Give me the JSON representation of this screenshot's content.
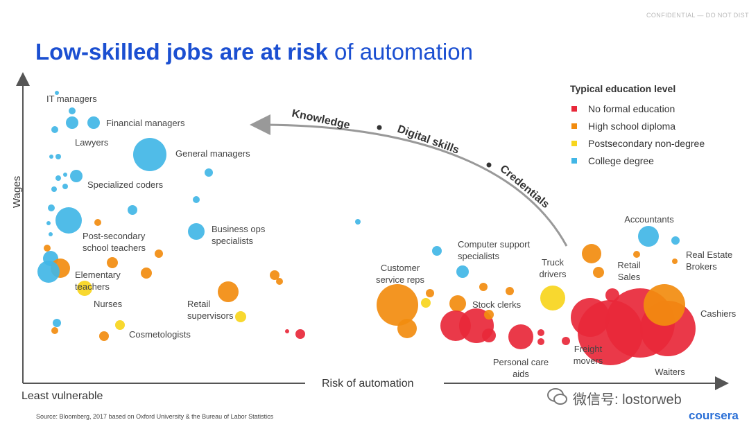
{
  "header": {
    "confidential": "CONFIDENTIAL — DO NOT DISTRIBUTE",
    "title_bold": "Low-skilled jobs are at risk",
    "title_normal": "of automation"
  },
  "brand": "coursera",
  "watermark": "微信号: lostorweb",
  "colors": {
    "no_formal": "#e8283a",
    "high_school": "#f28c0f",
    "postsecondary": "#f7d51d",
    "college": "#41b6e6",
    "title": "#1b4fd1"
  },
  "chart_data": {
    "type": "scatter",
    "title": "Low-skilled jobs are at risk of automation",
    "xlabel": "Risk of automation",
    "ylabel": "Wages",
    "x_low_label": "Least vulnerable",
    "source": "Source: Bloomberg, 2017 based on Oxford University & the Bureau of Labor Statistics",
    "arrow_labels": [
      "Knowledge",
      "Digital skills",
      "Credentials"
    ],
    "legend": {
      "title": "Typical education level",
      "entries": [
        {
          "name": "No formal education",
          "color": "#e8283a"
        },
        {
          "name": "High school diploma",
          "color": "#f28c0f"
        },
        {
          "name": "Postsecondary non-degree",
          "color": "#f7d51d"
        },
        {
          "name": "College degree",
          "color": "#41b6e6"
        }
      ]
    },
    "labels": [
      "IT managers",
      "Financial managers",
      "Lawyers",
      "General managers",
      "Specialized coders",
      "Business ops specialists",
      "Post-secondary school teachers",
      "Elementary teachers",
      "Nurses",
      "Retail supervisors",
      "Cosmetologists",
      "Customer service reps",
      "Computer support specialists",
      "Stock clerks",
      "Truck drivers",
      "Retail Sales",
      "Accountants",
      "Real Estate Brokers",
      "Cashiers",
      "Freight movers",
      "Personal care aids",
      "Waiters"
    ]
  }
}
